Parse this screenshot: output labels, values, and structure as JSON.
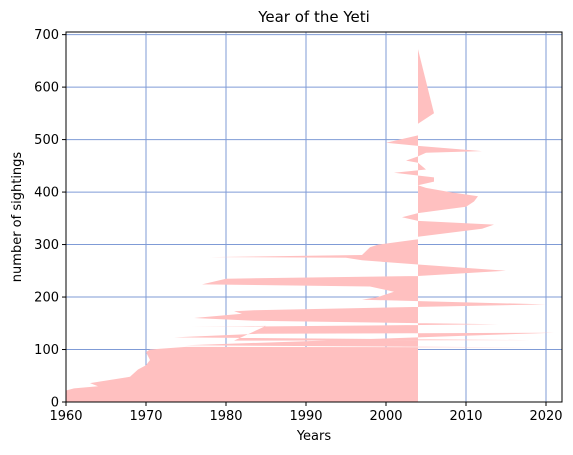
{
  "chart_data": {
    "type": "area",
    "title": "Year of the Yeti",
    "xlabel": "Years",
    "ylabel": "number of sightings",
    "xlim": [
      1960,
      2022
    ],
    "ylim": [
      0,
      705
    ],
    "grid": true,
    "grid_color": "#7f9bd6",
    "fill_color": "#ffc0c0",
    "xticks": [
      1960,
      1970,
      1980,
      1990,
      2000,
      2010,
      2020
    ],
    "yticks": [
      0,
      100,
      200,
      300,
      400,
      500,
      600,
      700
    ],
    "series": [
      {
        "description": "Filled region between x=0 and a year curve, plotted against cumulative sightings",
        "points": [
          [
            1960,
            0
          ],
          [
            1960,
            22
          ],
          [
            1961,
            26
          ],
          [
            1964,
            30
          ],
          [
            1963,
            36
          ],
          [
            1968,
            48
          ],
          [
            1969,
            62
          ],
          [
            1970,
            70
          ],
          [
            1970.5,
            80
          ],
          [
            1970,
            95
          ],
          [
            1970.5,
            100
          ],
          [
            1975,
            105
          ],
          [
            2019,
            104
          ],
          [
            1975,
            108
          ],
          [
            2021,
            132
          ],
          [
            1984,
            130
          ],
          [
            1973.5,
            123
          ],
          [
            2018,
            118
          ],
          [
            1981,
            117
          ],
          [
            1985,
            145
          ],
          [
            1975.5,
            143
          ],
          [
            2014,
            148
          ],
          [
            1983.5,
            155
          ],
          [
            1976,
            160
          ],
          [
            1982,
            168
          ],
          [
            1981,
            173
          ],
          [
            1983.5,
            175
          ],
          [
            2020,
            186
          ],
          [
            1997,
            195
          ],
          [
            1999,
            200
          ],
          [
            2001,
            210
          ],
          [
            1998,
            220
          ],
          [
            1977,
            224
          ],
          [
            1980,
            235
          ],
          [
            2004,
            240
          ],
          [
            2015,
            250
          ],
          [
            2004,
            262
          ],
          [
            1997,
            270
          ],
          [
            1995,
            275
          ],
          [
            1978,
            276
          ],
          [
            1997,
            280
          ],
          [
            1998,
            295
          ],
          [
            1999,
            300
          ],
          [
            2004,
            310
          ],
          [
            2004,
            315
          ],
          [
            2012,
            330
          ],
          [
            2013.5,
            338
          ],
          [
            2004,
            345
          ],
          [
            2002,
            352
          ],
          [
            2004,
            360
          ],
          [
            2007.5,
            367
          ],
          [
            2010,
            372
          ],
          [
            2011,
            382
          ],
          [
            2011.5,
            392
          ],
          [
            2008,
            400
          ],
          [
            2005,
            408
          ],
          [
            2004,
            413
          ],
          [
            2006,
            420
          ],
          [
            2006,
            428
          ],
          [
            2001,
            437
          ],
          [
            2005,
            443
          ],
          [
            2004,
            456
          ],
          [
            2002.5,
            460
          ],
          [
            2004,
            468
          ],
          [
            2005,
            475
          ],
          [
            2012,
            478
          ],
          [
            2004,
            488
          ],
          [
            2000,
            494
          ],
          [
            2004,
            508
          ],
          [
            2004,
            530
          ],
          [
            2006,
            550
          ],
          [
            2004,
            672
          ],
          [
            2004,
            0
          ]
        ]
      }
    ]
  }
}
